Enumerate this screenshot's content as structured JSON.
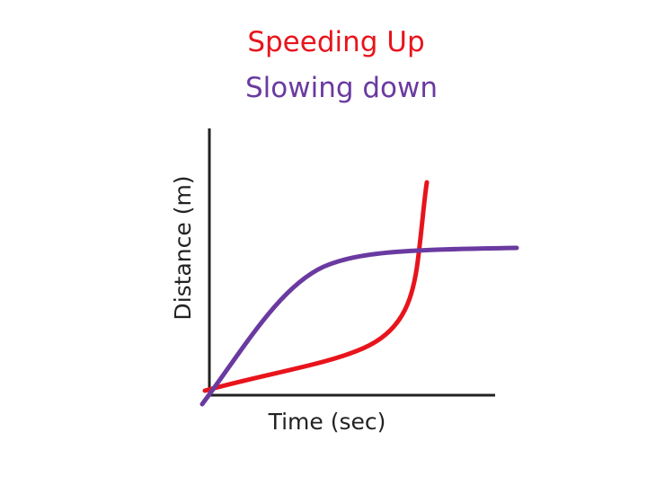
{
  "title": {
    "line1": "Speeding Up",
    "line2": "Slowing down"
  },
  "axes": {
    "y_label": "Distance (m)",
    "x_label": "Time (sec)"
  }
}
